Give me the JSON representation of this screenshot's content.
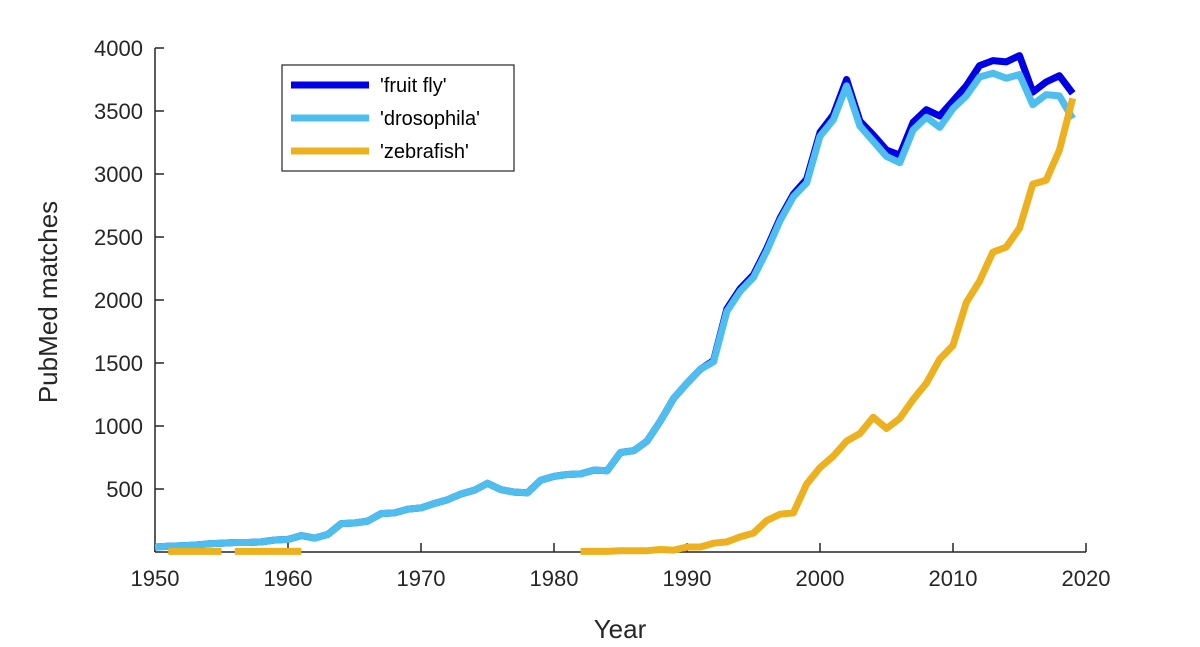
{
  "chart_data": {
    "type": "line",
    "title": "",
    "xlabel": "Year",
    "ylabel": "PubMed matches",
    "xlim": [
      1950,
      2020
    ],
    "ylim": [
      0,
      4000
    ],
    "xticks": [
      1950,
      1960,
      1970,
      1980,
      1990,
      2000,
      2010,
      2020
    ],
    "yticks": [
      500,
      1000,
      1500,
      2000,
      2500,
      3000,
      3500,
      4000
    ],
    "xtick_labels": [
      "1950",
      "1960",
      "1970",
      "1980",
      "1990",
      "2000",
      "2010",
      "2020"
    ],
    "ytick_labels": [
      "500",
      "1000",
      "1500",
      "2000",
      "2500",
      "3000",
      "3500",
      "4000"
    ],
    "grid": false,
    "legend_position": "top-left",
    "series": [
      {
        "name": "'fruit fly'",
        "color": "#0000e6",
        "x": [
          1950,
          1951,
          1952,
          1953,
          1954,
          1955,
          1956,
          1957,
          1958,
          1959,
          1960,
          1961,
          1962,
          1963,
          1964,
          1965,
          1966,
          1967,
          1968,
          1969,
          1970,
          1971,
          1972,
          1973,
          1974,
          1975,
          1976,
          1977,
          1978,
          1979,
          1980,
          1981,
          1982,
          1983,
          1984,
          1985,
          1986,
          1987,
          1988,
          1989,
          1990,
          1991,
          1992,
          1993,
          1994,
          1995,
          1996,
          1997,
          1998,
          1999,
          2000,
          2001,
          2002,
          2003,
          2004,
          2005,
          2006,
          2007,
          2008,
          2009,
          2010,
          2011,
          2012,
          2013,
          2014,
          2015,
          2016,
          2017,
          2018,
          2019
        ],
        "y": [
          40,
          45,
          50,
          55,
          65,
          70,
          75,
          75,
          80,
          95,
          100,
          130,
          110,
          140,
          225,
          230,
          245,
          305,
          310,
          340,
          350,
          385,
          415,
          460,
          490,
          545,
          495,
          475,
          470,
          570,
          600,
          615,
          620,
          650,
          645,
          790,
          805,
          880,
          1040,
          1220,
          1340,
          1450,
          1520,
          1930,
          2090,
          2200,
          2410,
          2650,
          2840,
          2960,
          3330,
          3470,
          3750,
          3420,
          3310,
          3190,
          3150,
          3410,
          3510,
          3460,
          3580,
          3700,
          3860,
          3900,
          3890,
          3940,
          3650,
          3730,
          3780,
          3640
        ]
      },
      {
        "name": "'drosophila'",
        "color": "#4dbeee",
        "x": [
          1950,
          1951,
          1952,
          1953,
          1954,
          1955,
          1956,
          1957,
          1958,
          1959,
          1960,
          1961,
          1962,
          1963,
          1964,
          1965,
          1966,
          1967,
          1968,
          1969,
          1970,
          1971,
          1972,
          1973,
          1974,
          1975,
          1976,
          1977,
          1978,
          1979,
          1980,
          1981,
          1982,
          1983,
          1984,
          1985,
          1986,
          1987,
          1988,
          1989,
          1990,
          1991,
          1992,
          1993,
          1994,
          1995,
          1996,
          1997,
          1998,
          1999,
          2000,
          2001,
          2002,
          2003,
          2004,
          2005,
          2006,
          2007,
          2008,
          2009,
          2010,
          2011,
          2012,
          2013,
          2014,
          2015,
          2016,
          2017,
          2018,
          2019
        ],
        "y": [
          40,
          45,
          50,
          55,
          65,
          70,
          75,
          75,
          80,
          95,
          100,
          130,
          110,
          140,
          225,
          230,
          245,
          305,
          310,
          340,
          350,
          385,
          415,
          460,
          490,
          545,
          495,
          475,
          470,
          570,
          600,
          615,
          620,
          650,
          645,
          790,
          805,
          880,
          1040,
          1220,
          1340,
          1450,
          1510,
          1910,
          2070,
          2180,
          2390,
          2630,
          2820,
          2930,
          3300,
          3430,
          3700,
          3380,
          3260,
          3140,
          3090,
          3350,
          3450,
          3370,
          3520,
          3620,
          3770,
          3800,
          3760,
          3790,
          3550,
          3630,
          3620,
          3440
        ]
      },
      {
        "name": "'zebrafish'",
        "color": "#edb120",
        "x": [
          1951,
          1952,
          1953,
          1954,
          1955,
          null,
          1956,
          1957,
          1958,
          1959,
          1960,
          1961,
          null,
          1982,
          1983,
          1984,
          1985,
          1986,
          1987,
          1988,
          1989,
          1990,
          1991,
          1992,
          1993,
          1994,
          1995,
          1996,
          1997,
          1998,
          1999,
          2000,
          2001,
          2002,
          2003,
          2004,
          2005,
          2006,
          2007,
          2008,
          2009,
          2010,
          2011,
          2012,
          2013,
          2014,
          2015,
          2016,
          2017,
          2018,
          2019
        ],
        "y": [
          5,
          5,
          5,
          5,
          5,
          null,
          5,
          5,
          5,
          5,
          5,
          5,
          null,
          5,
          5,
          5,
          10,
          10,
          10,
          20,
          15,
          40,
          40,
          70,
          80,
          120,
          150,
          250,
          300,
          310,
          540,
          670,
          760,
          880,
          940,
          1070,
          980,
          1060,
          1210,
          1340,
          1530,
          1640,
          1980,
          2150,
          2380,
          2420,
          2570,
          2920,
          2950,
          3190,
          3600
        ]
      }
    ]
  }
}
